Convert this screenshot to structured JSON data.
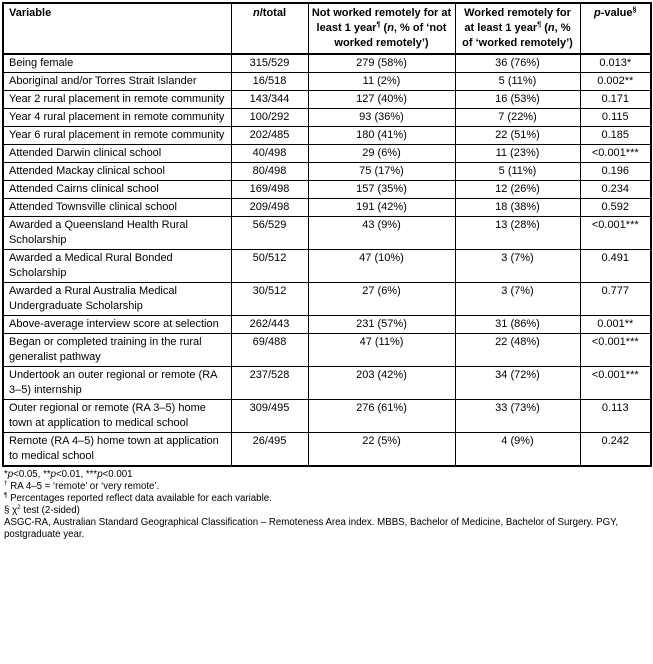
{
  "table": {
    "columns": [
      {
        "key": "variable",
        "rich": [
          {
            "t": "Variable"
          }
        ]
      },
      {
        "key": "n_total",
        "rich": [
          {
            "t": "n",
            "s": "i"
          },
          {
            "t": "/total"
          }
        ]
      },
      {
        "key": "not_worked",
        "rich": [
          {
            "t": "Not worked remotely for at least 1 year"
          },
          {
            "t": "¶",
            "s": "sup"
          },
          {
            "t": " ("
          },
          {
            "t": "n",
            "s": "i"
          },
          {
            "t": ", % of ‘not worked remotely’)"
          }
        ]
      },
      {
        "key": "worked",
        "rich": [
          {
            "t": "Worked remotely for at least 1 year"
          },
          {
            "t": "¶",
            "s": "sup"
          },
          {
            "t": " ("
          },
          {
            "t": "n",
            "s": "i"
          },
          {
            "t": ", % of ‘worked remotely’)"
          }
        ]
      },
      {
        "key": "p_value",
        "rich": [
          {
            "t": "p",
            "s": "i"
          },
          {
            "t": "-value"
          },
          {
            "t": "§",
            "s": "sup"
          }
        ]
      }
    ],
    "rows": [
      {
        "variable": "Being female",
        "n_total": "315/529",
        "not_worked": "279 (58%)",
        "worked": "36 (76%)",
        "p_value": "0.013*"
      },
      {
        "variable": "Aboriginal and/or Torres Strait Islander",
        "n_total": "16/518",
        "not_worked": "11 (2%)",
        "worked": "5 (11%)",
        "p_value": "0.002**"
      },
      {
        "variable": "Year 2 rural placement in remote community",
        "n_total": "143/344",
        "not_worked": "127 (40%)",
        "worked": "16 (53%)",
        "p_value": "0.171"
      },
      {
        "variable": "Year 4 rural placement in remote community",
        "n_total": "100/292",
        "not_worked": "93 (36%)",
        "worked": "7 (22%)",
        "p_value": "0.115"
      },
      {
        "variable": "Year 6 rural placement in remote community",
        "n_total": "202/485",
        "not_worked": "180 (41%)",
        "worked": "22 (51%)",
        "p_value": "0.185"
      },
      {
        "variable": "Attended Darwin clinical school",
        "n_total": "40/498",
        "not_worked": "29 (6%)",
        "worked": "11 (23%)",
        "p_value": "<0.001***"
      },
      {
        "variable": "Attended Mackay clinical school",
        "n_total": "80/498",
        "not_worked": "75 (17%)",
        "worked": "5 (11%)",
        "p_value": "0.196"
      },
      {
        "variable": "Attended Cairns clinical school",
        "n_total": "169/498",
        "not_worked": "157 (35%)",
        "worked": "12 (26%)",
        "p_value": "0.234"
      },
      {
        "variable": "Attended Townsville clinical school",
        "n_total": "209/498",
        "not_worked": "191 (42%)",
        "worked": "18 (38%)",
        "p_value": "0.592"
      },
      {
        "variable": "Awarded a Queensland Health Rural Scholarship",
        "n_total": "56/529",
        "not_worked": "43 (9%)",
        "worked": "13 (28%)",
        "p_value": "<0.001***"
      },
      {
        "variable": "Awarded a Medical Rural Bonded Scholarship",
        "n_total": "50/512",
        "not_worked": "47 (10%)",
        "worked": "3 (7%)",
        "p_value": "0.491"
      },
      {
        "variable": "Awarded a Rural Australia Medical Undergraduate Scholarship",
        "n_total": "30/512",
        "not_worked": "27 (6%)",
        "worked": "3 (7%)",
        "p_value": "0.777"
      },
      {
        "variable": "Above-average interview score at selection",
        "n_total": "262/443",
        "not_worked": "231 (57%)",
        "worked": "31 (86%)",
        "p_value": "0.001**"
      },
      {
        "variable": "Began or completed training in the rural generalist pathway",
        "n_total": "69/488",
        "not_worked": "47 (11%)",
        "worked": "22 (48%)",
        "p_value": "<0.001***"
      },
      {
        "variable": "Undertook an outer regional or remote (RA 3–5) internship",
        "n_total": "237/528",
        "not_worked": "203 (42%)",
        "worked": "34 (72%)",
        "p_value": "<0.001***"
      },
      {
        "variable": "Outer regional or remote (RA 3–5) home town at application to medical school",
        "n_total": "309/495",
        "not_worked": "276 (61%)",
        "worked": "33 (73%)",
        "p_value": "0.113"
      },
      {
        "variable": "Remote (RA 4–5) home town at application to medical school",
        "n_total": "26/495",
        "not_worked": "22 (5%)",
        "worked": "4 (9%)",
        "p_value": "0.242"
      }
    ]
  },
  "footnotes": [
    {
      "rich": [
        {
          "t": "*"
        },
        {
          "t": "p",
          "s": "i"
        },
        {
          "t": "<0.05, **"
        },
        {
          "t": "p",
          "s": "i"
        },
        {
          "t": "<0.01, ***"
        },
        {
          "t": "p",
          "s": "i"
        },
        {
          "t": "<0.001"
        }
      ]
    },
    {
      "rich": [
        {
          "t": "†",
          "s": "sup"
        },
        {
          "t": " RA 4–5 = ‘remote’ or ‘very remote’."
        }
      ]
    },
    {
      "rich": [
        {
          "t": "¶",
          "s": "sup"
        },
        {
          "t": " Percentages reported reflect data available for each variable."
        }
      ]
    },
    {
      "rich": [
        {
          "t": "§ χ"
        },
        {
          "t": "2",
          "s": "sup"
        },
        {
          "t": " test (2-sided)"
        }
      ]
    },
    {
      "rich": [
        {
          "t": "ASGC-RA, Australian Standard Geographical Classification – Remoteness Area index. MBBS, Bachelor of Medicine, Bachelor of Surgery. PGY, postgraduate year."
        }
      ]
    }
  ]
}
